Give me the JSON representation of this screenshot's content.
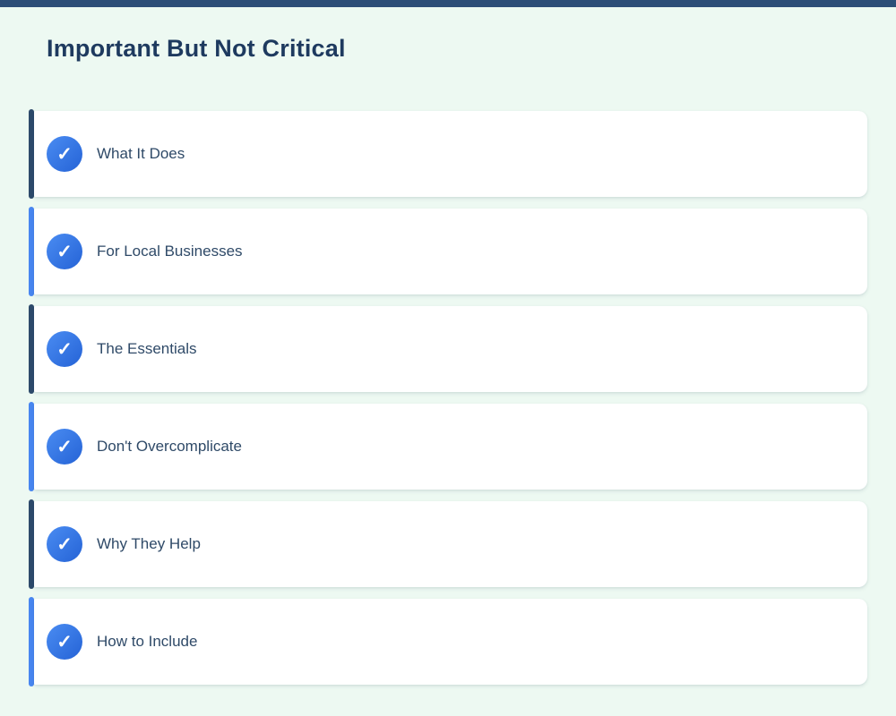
{
  "page": {
    "title": "Important But Not Critical"
  },
  "colors": {
    "topbar": "#2d4e78",
    "background": "#edf9f2",
    "accent_dark": "#2d4a6b",
    "accent_blue": "#4886f0",
    "check_circle_gradient_start": "#4a8cf2",
    "check_circle_gradient_end": "#2563d6",
    "title_text": "#1e3a5f",
    "item_text": "#2f4a68"
  },
  "icons": {
    "check": "✓"
  },
  "items": [
    {
      "label": "What It Does",
      "accent": "dark"
    },
    {
      "label": "For Local Businesses",
      "accent": "blue"
    },
    {
      "label": "The Essentials",
      "accent": "dark"
    },
    {
      "label": "Don't Overcomplicate",
      "accent": "blue"
    },
    {
      "label": "Why They Help",
      "accent": "dark"
    },
    {
      "label": "How to Include",
      "accent": "blue"
    }
  ]
}
